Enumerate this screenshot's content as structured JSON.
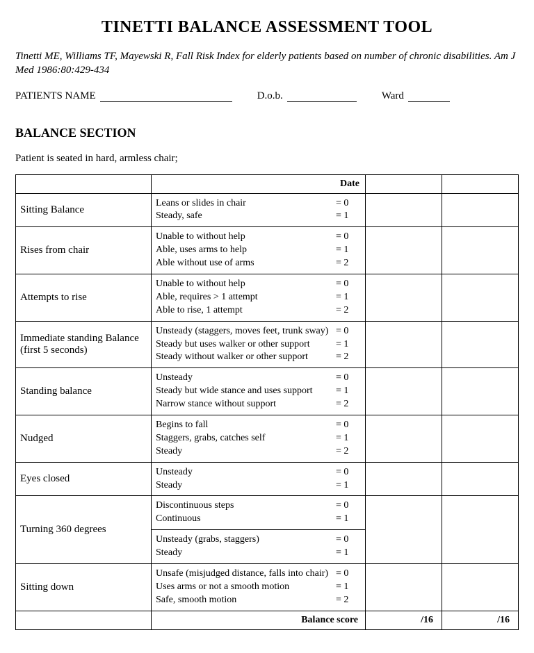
{
  "title": "TINETTI BALANCE ASSESSMENT TOOL",
  "citation": "Tinetti ME, Williams TF, Mayewski R, Fall Risk Index for elderly patients based on number of chronic disabilities.  Am J Med 1986:80:429-434",
  "patient": {
    "name_label": "PATIENTS NAME",
    "dob_label": "D.o.b.",
    "ward_label": "Ward"
  },
  "section_heading": "BALANCE SECTION",
  "instructions": "Patient is seated in hard, armless chair;",
  "date_header": "Date",
  "rows": [
    {
      "item": "Sitting Balance",
      "groups": [
        {
          "criteria": [
            "Leans or slides in chair",
            "Steady, safe"
          ],
          "scores": [
            "= 0",
            "= 1"
          ]
        }
      ]
    },
    {
      "item": "Rises from chair",
      "groups": [
        {
          "criteria": [
            "Unable to without help",
            "Able, uses arms to help",
            "Able without use of arms"
          ],
          "scores": [
            "= 0",
            "= 1",
            "= 2"
          ]
        }
      ]
    },
    {
      "item": "Attempts to rise",
      "groups": [
        {
          "criteria": [
            "Unable to without help",
            "Able, requires > 1 attempt",
            "Able to rise, 1 attempt"
          ],
          "scores": [
            "= 0",
            "= 1",
            "= 2"
          ]
        }
      ]
    },
    {
      "item": "Immediate standing Balance (first 5 seconds)",
      "groups": [
        {
          "criteria": [
            "Unsteady (staggers, moves feet, trunk sway)",
            "Steady but uses walker or other support",
            "Steady without walker or other support"
          ],
          "scores": [
            "= 0",
            "= 1",
            "= 2"
          ]
        }
      ]
    },
    {
      "item": "Standing balance",
      "groups": [
        {
          "criteria": [
            "Unsteady",
            "Steady but wide stance and uses support",
            "Narrow stance without support"
          ],
          "scores": [
            "= 0",
            "= 1",
            "= 2"
          ]
        }
      ]
    },
    {
      "item": "Nudged",
      "groups": [
        {
          "criteria": [
            "Begins to fall",
            "Staggers, grabs, catches self",
            "Steady"
          ],
          "scores": [
            "= 0",
            "= 1",
            "= 2"
          ]
        }
      ]
    },
    {
      "item": "Eyes closed",
      "groups": [
        {
          "criteria": [
            "Unsteady",
            "Steady"
          ],
          "scores": [
            "= 0",
            "= 1"
          ]
        }
      ]
    },
    {
      "item": "Turning 360 degrees",
      "groups": [
        {
          "criteria": [
            "Discontinuous steps",
            "Continuous"
          ],
          "scores": [
            "= 0",
            "= 1"
          ]
        },
        {
          "criteria": [
            "Unsteady (grabs, staggers)",
            "Steady"
          ],
          "scores": [
            "= 0",
            "= 1"
          ]
        }
      ]
    },
    {
      "item": "Sitting down",
      "groups": [
        {
          "criteria": [
            "Unsafe (misjudged distance, falls into chair)",
            "Uses arms or not a smooth motion",
            "Safe, smooth motion"
          ],
          "scores": [
            "= 0",
            "= 1",
            "= 2"
          ]
        }
      ]
    }
  ],
  "score_row": {
    "label": "Balance score",
    "out_of": "/16"
  }
}
